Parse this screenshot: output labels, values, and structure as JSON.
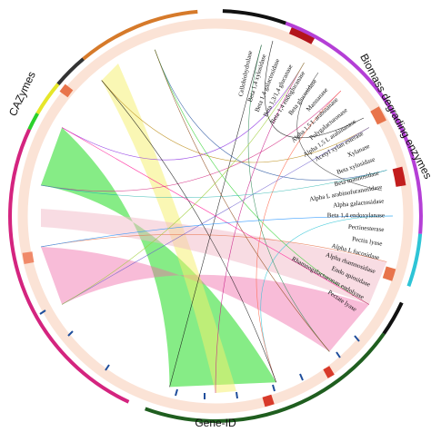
{
  "labels": {
    "left": "CAZymes",
    "right": "Biomass degrading enzymes",
    "bottom": "Gene-ID"
  },
  "enzymes": [
    "Cellobiohydrolase",
    "Beta 1,4 xylosidase",
    "Beta 1,4 galactosidase",
    "Beta 1,3/1,4 glucanase",
    "Beta 1,4 endoglucanase",
    "Beta glucosidase",
    "Mannanase",
    "Alpha 1,5 L arabinanase",
    "Polygalacturonase",
    "Alpha 1,5 L arabinanase",
    "Acetyl xylan esterase",
    "Xylanase",
    "Beta xylosidase",
    "Beta mannosidase",
    "Alpha L arabinofuranosidase",
    "Alpha galactosidase",
    "Beta 1,4 endoxylanase",
    "Pectinesterase",
    "Pectin lyase",
    "Alpha L fucosidase",
    "Alpha rhamnosidase",
    "Endo apiosidase",
    "Rhamnogalacturonan endolyase",
    "Pectate lyase"
  ]
}
